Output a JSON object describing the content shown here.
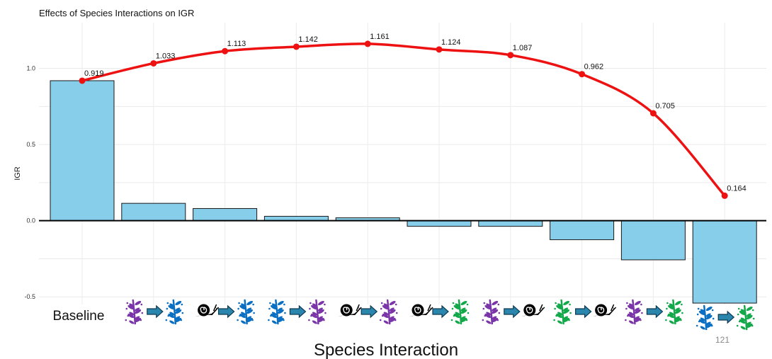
{
  "chart_data": {
    "type": "bar",
    "title": "Effects of Species Interactions on IGR",
    "xlabel": "Species Interaction",
    "ylabel": "IGR",
    "ylim": [
      -0.55,
      1.3
    ],
    "yticks": [
      "1.0",
      "0.5",
      "0.0",
      "-0.5"
    ],
    "ytick_values": [
      1.0,
      0.5,
      0.0,
      -0.5
    ],
    "grid": true,
    "categories": [
      {
        "label": "Baseline",
        "from": "",
        "to": ""
      },
      {
        "label": "",
        "from": "purple-plant",
        "to": "blue-plant"
      },
      {
        "label": "",
        "from": "snail",
        "to": "blue-plant"
      },
      {
        "label": "",
        "from": "blue-plant",
        "to": "purple-plant"
      },
      {
        "label": "",
        "from": "snail",
        "to": "purple-plant"
      },
      {
        "label": "",
        "from": "snail",
        "to": "green-plant"
      },
      {
        "label": "",
        "from": "purple-plant",
        "to": "snail"
      },
      {
        "label": "",
        "from": "green-plant",
        "to": "snail"
      },
      {
        "label": "",
        "from": "purple-plant",
        "to": "green-plant"
      },
      {
        "label": "",
        "from": "blue-plant",
        "to": "green-plant"
      }
    ],
    "bars": [
      0.919,
      0.114,
      0.08,
      0.029,
      0.019,
      -0.037,
      -0.037,
      -0.125,
      -0.257,
      -0.541
    ],
    "line": [
      0.919,
      1.033,
      1.113,
      1.142,
      1.161,
      1.124,
      1.087,
      0.962,
      0.705,
      0.164
    ],
    "line_labels": [
      "0.919",
      "1.033",
      "1.113",
      "1.142",
      "1.161",
      "1.124",
      "1.087",
      "0.962",
      "0.705",
      "0.164"
    ],
    "colors": {
      "bar": "#87ceeb",
      "bar_stroke": "#1a1a1a",
      "line": "#ee1111",
      "arrow": "#2b86ad"
    }
  },
  "page_number": "121"
}
